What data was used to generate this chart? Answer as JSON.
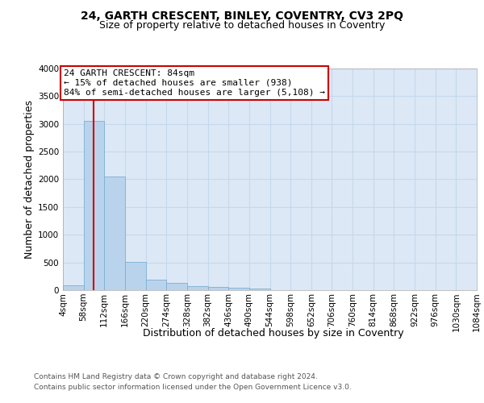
{
  "title": "24, GARTH CRESCENT, BINLEY, COVENTRY, CV3 2PQ",
  "subtitle": "Size of property relative to detached houses in Coventry",
  "xlabel": "Distribution of detached houses by size in Coventry",
  "ylabel": "Number of detached properties",
  "bin_edges": [
    4,
    58,
    112,
    166,
    220,
    274,
    328,
    382,
    436,
    490,
    544,
    598,
    652,
    706,
    760,
    814,
    868,
    922,
    976,
    1030,
    1084
  ],
  "bar_heights": [
    90,
    3050,
    2050,
    510,
    195,
    130,
    75,
    60,
    45,
    30,
    0,
    0,
    0,
    0,
    0,
    0,
    0,
    0,
    0,
    0
  ],
  "bar_color": "#bad3ec",
  "bar_edgecolor": "#7bafd4",
  "property_size": 84,
  "property_line_color": "#cc0000",
  "annotation_text": "24 GARTH CRESCENT: 84sqm\n← 15% of detached houses are smaller (938)\n84% of semi-detached houses are larger (5,108) →",
  "annotation_box_edgecolor": "#cc0000",
  "ylim": [
    0,
    4000
  ],
  "yticks": [
    0,
    500,
    1000,
    1500,
    2000,
    2500,
    3000,
    3500,
    4000
  ],
  "plot_bg_color": "#dce8f5",
  "grid_color": "#c5d8ec",
  "footer_line1": "Contains HM Land Registry data © Crown copyright and database right 2024.",
  "footer_line2": "Contains public sector information licensed under the Open Government Licence v3.0.",
  "title_fontsize": 10,
  "subtitle_fontsize": 9,
  "axis_label_fontsize": 9,
  "tick_fontsize": 7.5,
  "footer_fontsize": 6.5,
  "annot_fontsize": 8
}
